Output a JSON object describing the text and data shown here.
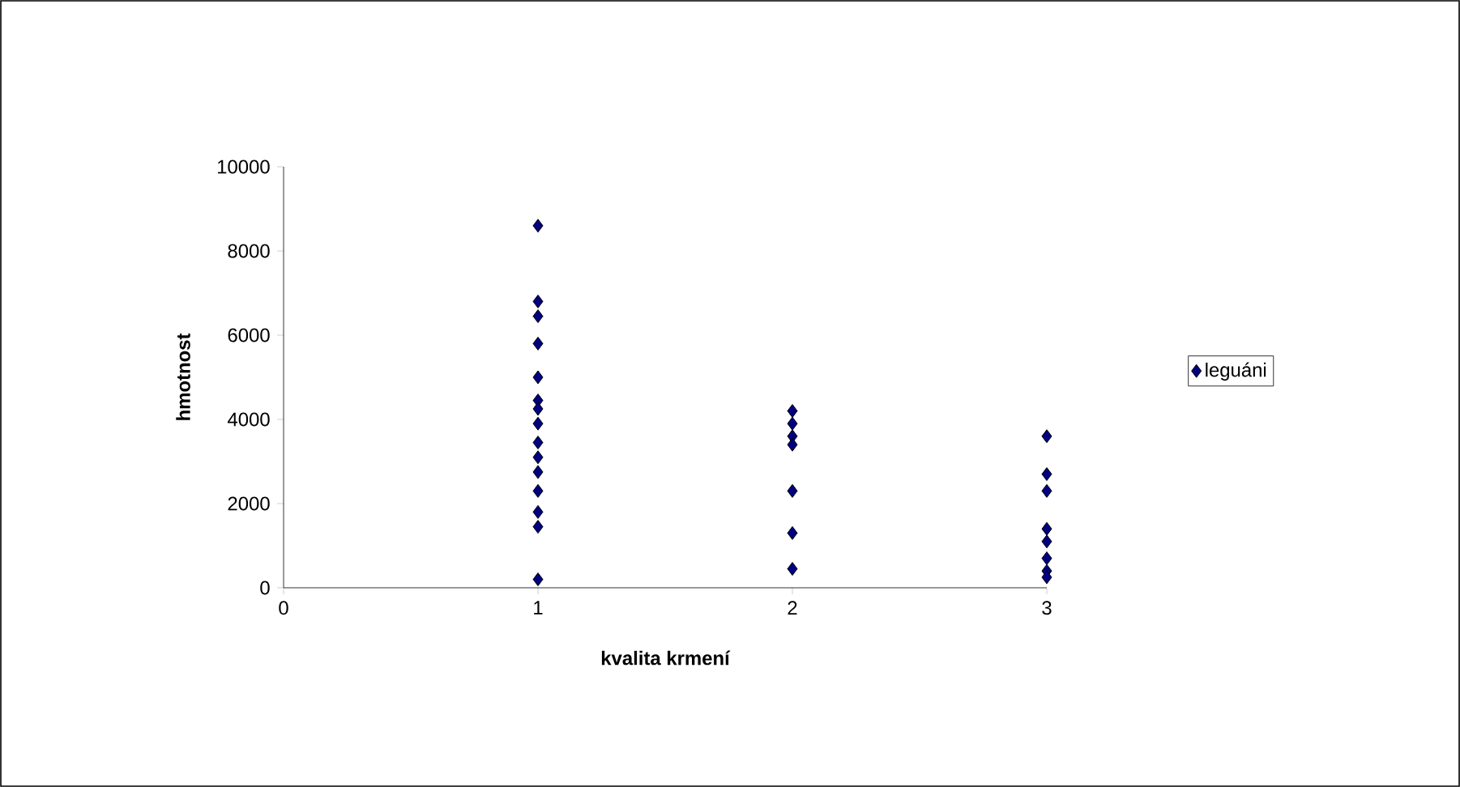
{
  "chart_data": {
    "type": "scatter",
    "xlabel": "kvalita krmení",
    "ylabel": "hmotnost",
    "xlim": [
      0,
      3
    ],
    "xticks": [
      0,
      1,
      2,
      3
    ],
    "ylim": [
      0,
      10000
    ],
    "yticks": [
      0,
      2000,
      4000,
      6000,
      8000,
      10000
    ],
    "marker": "diamond",
    "legend": "right",
    "grid": false,
    "series": [
      {
        "name": "leguáni",
        "color": "#000080",
        "x": [
          1,
          1,
          1,
          1,
          1,
          1,
          1,
          1,
          1,
          1,
          1,
          1,
          1,
          1,
          1,
          2,
          2,
          2,
          2,
          2,
          2,
          2,
          3,
          3,
          3,
          3,
          3,
          3,
          3,
          3
        ],
        "values": [
          8600,
          6800,
          6450,
          5800,
          5000,
          4450,
          4250,
          3900,
          3450,
          3100,
          2750,
          2300,
          1800,
          1450,
          200,
          4200,
          3900,
          3600,
          3400,
          2300,
          1300,
          450,
          3600,
          2700,
          2300,
          1400,
          1100,
          700,
          400,
          250
        ]
      }
    ]
  }
}
